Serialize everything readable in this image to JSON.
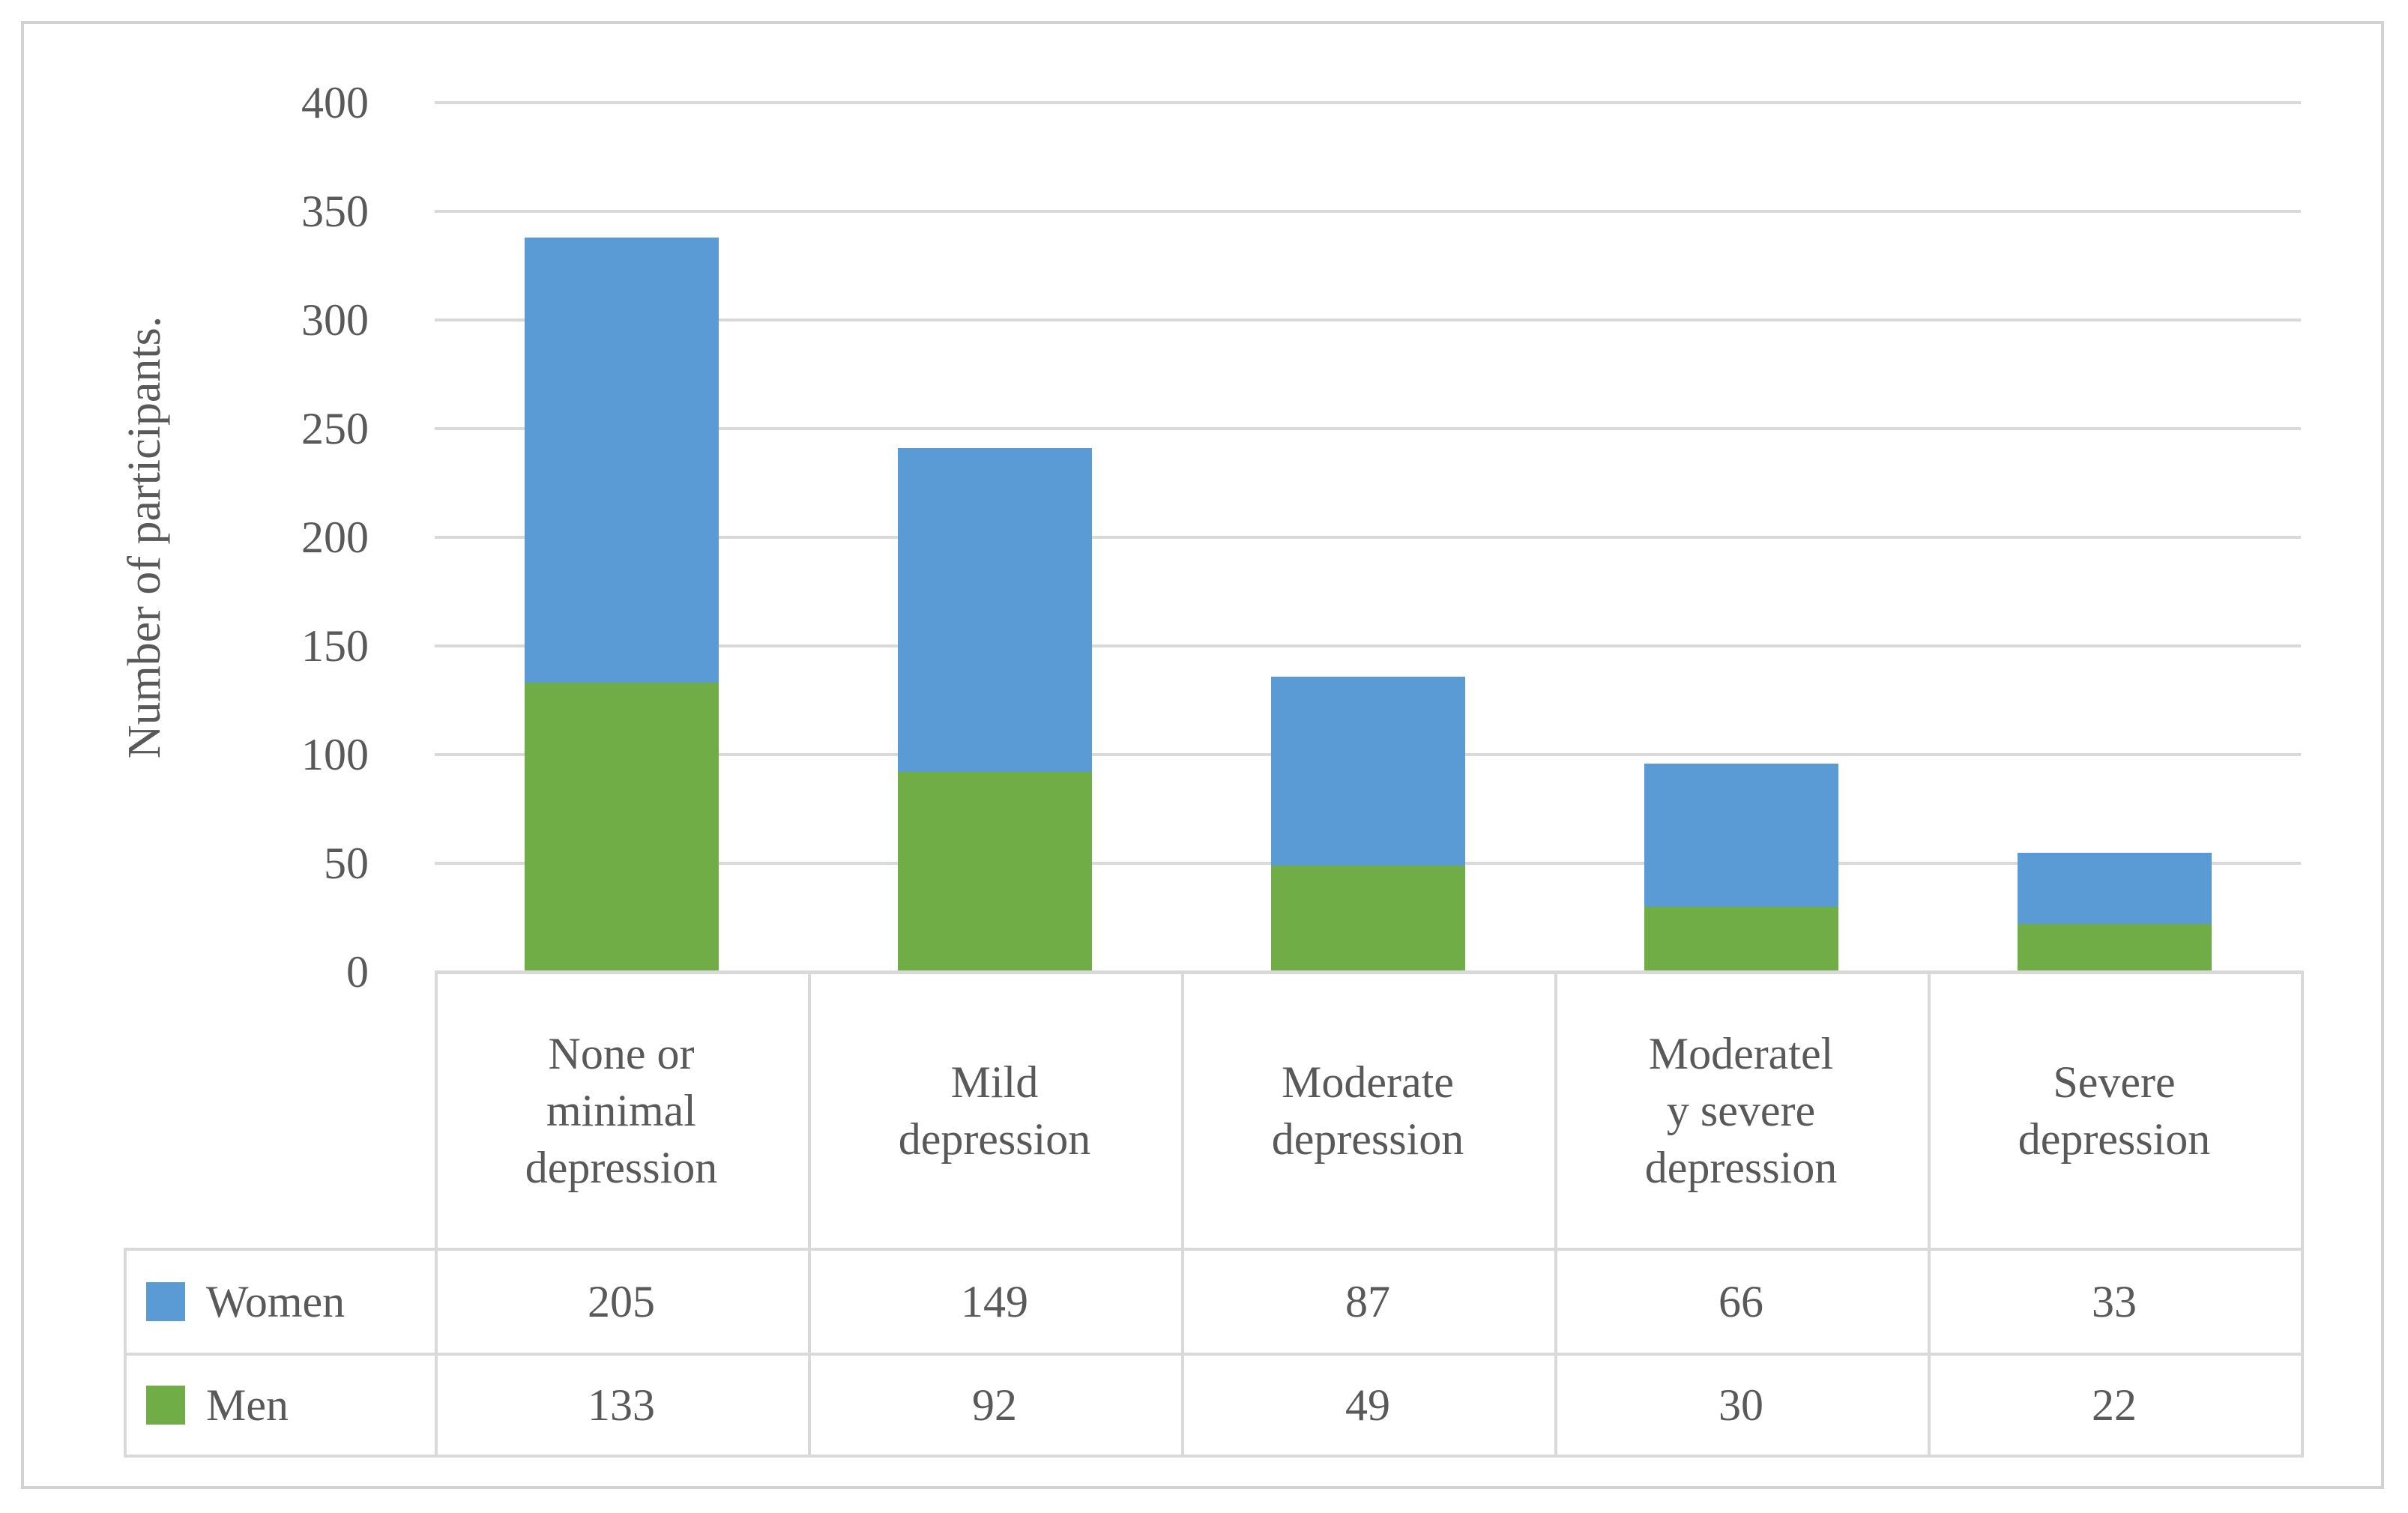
{
  "figure": {
    "y_axis_title": "Number of participants.",
    "text_color": "#595959",
    "gridline_color": "#d9d9d9",
    "frame_color": "#d2d2d2"
  },
  "chart_data": {
    "type": "bar",
    "stacked": true,
    "title": "",
    "xlabel": "",
    "ylabel": "Number of participants.",
    "ylim": [
      0,
      400
    ],
    "ytick_step": 50,
    "yticks": [
      400,
      350,
      300,
      250,
      200,
      150,
      100,
      50,
      0
    ],
    "grid": true,
    "legend_position": "data-table-left-column",
    "categories": [
      "None or minimal depression",
      "Mild depression",
      "Moderate depression",
      "Moderately severe depression",
      "Severe depression"
    ],
    "category_display_lines": [
      [
        "None or",
        "minimal",
        "depression"
      ],
      [
        "Mild",
        "depression"
      ],
      [
        "Moderate",
        "depression"
      ],
      [
        "Moderatel",
        "y severe",
        "depression"
      ],
      [
        "Severe",
        "depression"
      ]
    ],
    "series": [
      {
        "name": "Women",
        "color": "#5B9BD5",
        "values": [
          205,
          149,
          87,
          66,
          33
        ]
      },
      {
        "name": "Men",
        "color": "#70AD47",
        "values": [
          133,
          92,
          49,
          30,
          22
        ]
      }
    ]
  }
}
